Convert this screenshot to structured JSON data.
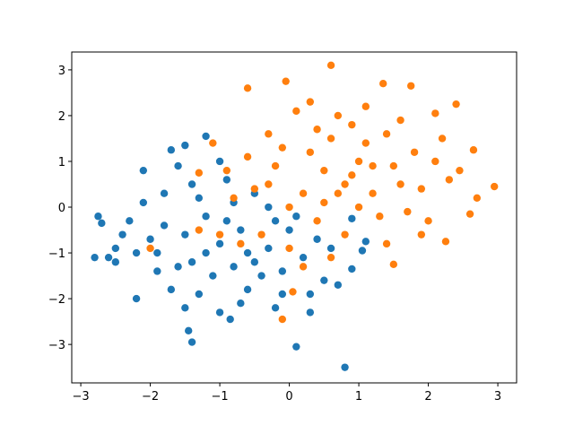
{
  "chart_data": {
    "type": "scatter",
    "xlim": [
      -3.13,
      3.27
    ],
    "ylim": [
      -3.84,
      3.39
    ],
    "xticks": [
      {
        "value": -3,
        "label": "−3"
      },
      {
        "value": -2,
        "label": "−2"
      },
      {
        "value": -1,
        "label": "−1"
      },
      0,
      1,
      2,
      3
    ],
    "yticks": [
      {
        "value": -3,
        "label": "−3"
      },
      {
        "value": -2,
        "label": "−2"
      },
      {
        "value": -1,
        "label": "−1"
      },
      0,
      1,
      2,
      3
    ],
    "series": [
      {
        "color": "#1f77b4",
        "x": [
          -2.8,
          -2.75,
          -2.7,
          -2.6,
          -2.5,
          -2.1,
          -2.2,
          -1.45,
          -1.4,
          0.1,
          0.8,
          -1.2,
          -1.5,
          -1.7,
          -0.85,
          0.3,
          0.9,
          1.05,
          1.1,
          0.9,
          -1.0,
          -0.7,
          -1.2,
          -0.5,
          -0.9,
          -1.5,
          -0.3,
          -1.1,
          -0.6,
          -1.8,
          -1.3,
          -0.8,
          -0.2,
          -1.6,
          -2.0,
          -1.9,
          -0.4,
          0.2,
          0.4,
          -0.1,
          -0.7,
          -1.3,
          -1.7,
          -2.3,
          -2.2,
          -1.4,
          -0.9,
          -0.5,
          0.0,
          0.5,
          0.3,
          -0.2,
          -1.0,
          -1.5,
          -1.8,
          -2.4,
          -1.2,
          -0.6,
          -0.3,
          0.6,
          0.7,
          -1.0,
          -1.6,
          -2.1,
          -0.8,
          -1.4,
          -0.1,
          0.1,
          -1.9,
          -2.5
        ],
        "y": [
          -1.1,
          -0.2,
          -0.35,
          -1.1,
          -1.2,
          0.8,
          -2.0,
          -2.7,
          -2.95,
          -3.05,
          -3.5,
          1.55,
          1.35,
          1.25,
          -2.45,
          -2.3,
          -1.35,
          -0.95,
          -0.75,
          -0.25,
          -0.8,
          -0.5,
          -1.0,
          -1.2,
          -0.3,
          -0.6,
          -0.9,
          -1.5,
          -1.8,
          -0.4,
          0.2,
          0.1,
          -0.3,
          -1.3,
          -0.7,
          -1.4,
          -1.5,
          -1.1,
          -0.7,
          -1.9,
          -2.1,
          -1.9,
          -1.8,
          -0.3,
          -1.0,
          0.5,
          0.6,
          0.3,
          -0.5,
          -1.6,
          -1.9,
          -2.2,
          -2.3,
          -2.2,
          0.3,
          -0.6,
          -0.2,
          -1.0,
          0.0,
          -0.9,
          -1.7,
          1.0,
          0.9,
          0.1,
          -1.3,
          -1.2,
          -1.4,
          -0.2,
          -1.0,
          -0.9
        ]
      },
      {
        "color": "#ff7f0e",
        "x": [
          0.6,
          -0.05,
          -0.6,
          1.35,
          1.75,
          2.4,
          2.1,
          2.95,
          2.7,
          2.6,
          2.25,
          1.5,
          -0.1,
          0.05,
          -2.0,
          -1.3,
          -1.3,
          -1.1,
          2.65,
          2.45,
          0.5,
          0.8,
          0.3,
          1.0,
          0.2,
          1.2,
          0.6,
          1.5,
          -0.2,
          0.9,
          1.8,
          0.0,
          0.4,
          1.3,
          -0.5,
          1.9,
          2.1,
          0.7,
          -0.3,
          1.6,
          1.1,
          0.1,
          0.3,
          -0.6,
          -0.8,
          -0.4,
          0.0,
          0.8,
          1.4,
          2.0,
          1.7,
          2.3,
          2.2,
          1.0,
          0.5,
          -1.0,
          -0.7,
          -0.9,
          0.2,
          0.6,
          1.1,
          1.4,
          0.9,
          0.4,
          -0.1,
          -0.3,
          1.6,
          1.2,
          0.7,
          1.9
        ],
        "y": [
          3.1,
          2.75,
          2.6,
          2.7,
          2.65,
          2.25,
          2.05,
          0.45,
          0.2,
          -0.15,
          -0.75,
          -1.25,
          -2.45,
          -1.85,
          -0.9,
          -0.5,
          0.75,
          1.4,
          1.25,
          0.8,
          0.8,
          0.5,
          1.2,
          1.0,
          0.3,
          0.3,
          1.5,
          0.9,
          0.9,
          1.8,
          1.2,
          0.0,
          -0.3,
          -0.2,
          0.4,
          0.4,
          1.0,
          2.0,
          1.6,
          1.9,
          2.2,
          2.1,
          2.3,
          1.1,
          0.2,
          -0.6,
          -0.9,
          -0.6,
          -0.8,
          -0.3,
          -0.1,
          0.6,
          1.5,
          0.0,
          0.1,
          -0.6,
          -0.8,
          0.8,
          -1.3,
          -1.1,
          1.4,
          1.6,
          0.7,
          1.7,
          1.3,
          0.5,
          0.5,
          0.9,
          0.3,
          -0.6
        ]
      }
    ]
  }
}
